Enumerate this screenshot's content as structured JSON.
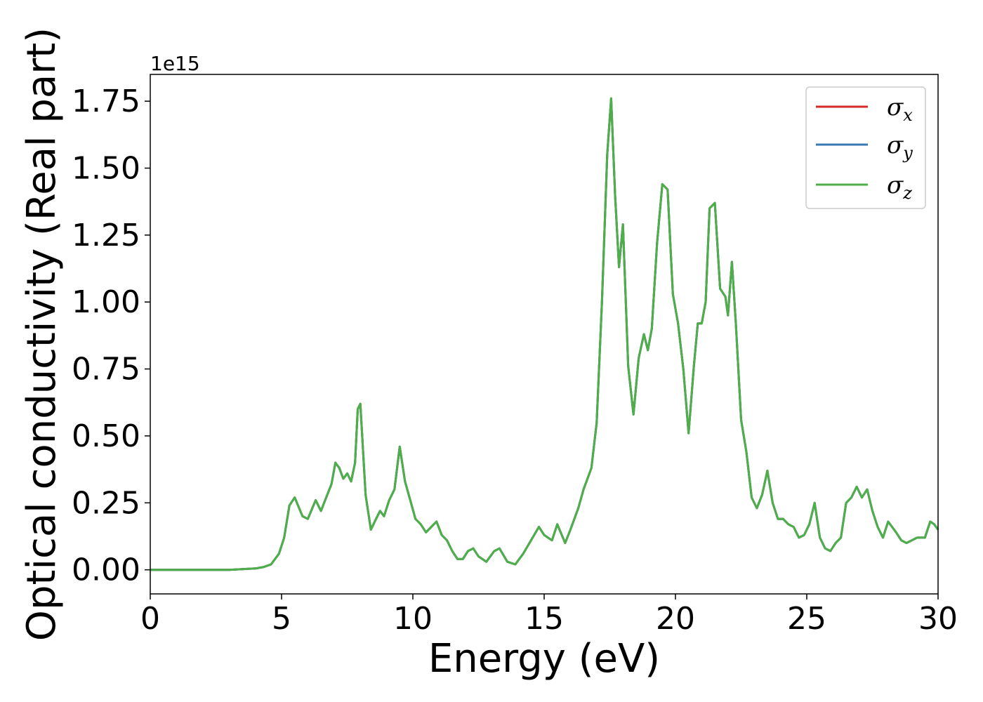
{
  "chart_data": {
    "type": "line",
    "xlabel": "Energy (eV)",
    "ylabel": "Optical conductivity (Real part)",
    "y_offset_label": "1e15",
    "xlim": [
      0,
      30
    ],
    "ylim": [
      -0.09,
      1.85
    ],
    "x_ticks": [
      0,
      5,
      10,
      15,
      20,
      25,
      30
    ],
    "x_tick_labels": [
      "0",
      "5",
      "10",
      "15",
      "20",
      "25",
      "30"
    ],
    "y_ticks": [
      0.0,
      0.25,
      0.5,
      0.75,
      1.0,
      1.25,
      1.5,
      1.75
    ],
    "y_tick_labels": [
      "0.00",
      "0.25",
      "0.50",
      "0.75",
      "1.00",
      "1.25",
      "1.50",
      "1.75"
    ],
    "grid": false,
    "legend_position": "top-right",
    "colors": {
      "sigma_x": "#d62728",
      "sigma_y": "#3a78b5",
      "sigma_z": "#4daf4a"
    },
    "legend": [
      {
        "symbol": "σ",
        "subscript": "x",
        "color": "#d62728"
      },
      {
        "symbol": "σ",
        "subscript": "y",
        "color": "#3a78b5"
      },
      {
        "symbol": "σ",
        "subscript": "z",
        "color": "#4daf4a"
      }
    ],
    "x": [
      0,
      1,
      2,
      3,
      4,
      4.3,
      4.6,
      4.9,
      5.1,
      5.3,
      5.5,
      5.8,
      6.0,
      6.3,
      6.5,
      6.7,
      6.9,
      7.05,
      7.2,
      7.35,
      7.5,
      7.65,
      7.8,
      7.9,
      8.0,
      8.2,
      8.4,
      8.6,
      8.75,
      8.9,
      9.1,
      9.3,
      9.5,
      9.7,
      9.9,
      10.1,
      10.3,
      10.5,
      10.7,
      10.9,
      11.1,
      11.3,
      11.5,
      11.7,
      11.9,
      12.1,
      12.3,
      12.5,
      12.8,
      13.1,
      13.3,
      13.6,
      13.9,
      14.2,
      14.5,
      14.8,
      15.0,
      15.3,
      15.5,
      15.8,
      16.0,
      16.3,
      16.5,
      16.8,
      17.0,
      17.2,
      17.4,
      17.55,
      17.7,
      17.85,
      18.0,
      18.2,
      18.4,
      18.6,
      18.8,
      18.95,
      19.1,
      19.3,
      19.5,
      19.7,
      19.9,
      20.1,
      20.3,
      20.5,
      20.7,
      20.85,
      21.0,
      21.15,
      21.3,
      21.5,
      21.7,
      21.9,
      22.0,
      22.15,
      22.3,
      22.5,
      22.7,
      22.9,
      23.1,
      23.3,
      23.5,
      23.7,
      23.9,
      24.1,
      24.3,
      24.5,
      24.7,
      24.9,
      25.1,
      25.3,
      25.5,
      25.7,
      25.9,
      26.1,
      26.3,
      26.5,
      26.7,
      26.9,
      27.1,
      27.3,
      27.5,
      27.7,
      27.9,
      28.1,
      28.4,
      28.6,
      28.8,
      29.0,
      29.2,
      29.5,
      29.7,
      29.85,
      30.0
    ],
    "series": [
      {
        "name": "σ_x",
        "color": "#d62728",
        "values": [
          0,
          0,
          0,
          0,
          0.005,
          0.01,
          0.02,
          0.06,
          0.12,
          0.24,
          0.27,
          0.2,
          0.19,
          0.26,
          0.22,
          0.27,
          0.32,
          0.4,
          0.38,
          0.34,
          0.36,
          0.33,
          0.4,
          0.6,
          0.62,
          0.28,
          0.15,
          0.19,
          0.22,
          0.2,
          0.26,
          0.3,
          0.46,
          0.33,
          0.26,
          0.19,
          0.17,
          0.14,
          0.16,
          0.18,
          0.13,
          0.11,
          0.07,
          0.04,
          0.04,
          0.07,
          0.08,
          0.05,
          0.03,
          0.07,
          0.08,
          0.03,
          0.02,
          0.06,
          0.11,
          0.16,
          0.13,
          0.11,
          0.17,
          0.1,
          0.15,
          0.23,
          0.3,
          0.38,
          0.55,
          1.0,
          1.55,
          1.76,
          1.4,
          1.13,
          1.29,
          0.76,
          0.58,
          0.79,
          0.88,
          0.82,
          0.9,
          1.22,
          1.44,
          1.42,
          1.03,
          0.92,
          0.75,
          0.51,
          0.76,
          0.92,
          0.92,
          1.0,
          1.35,
          1.37,
          1.05,
          1.02,
          0.95,
          1.15,
          0.92,
          0.56,
          0.44,
          0.27,
          0.23,
          0.28,
          0.37,
          0.25,
          0.19,
          0.19,
          0.17,
          0.16,
          0.12,
          0.13,
          0.17,
          0.25,
          0.12,
          0.08,
          0.07,
          0.1,
          0.12,
          0.25,
          0.27,
          0.31,
          0.27,
          0.3,
          0.22,
          0.16,
          0.12,
          0.18,
          0.14,
          0.11,
          0.1,
          0.11,
          0.12,
          0.12,
          0.18,
          0.17,
          0.15
        ]
      },
      {
        "name": "σ_y",
        "color": "#3a78b5",
        "values": [
          0,
          0,
          0,
          0,
          0.005,
          0.01,
          0.02,
          0.06,
          0.12,
          0.24,
          0.27,
          0.2,
          0.19,
          0.26,
          0.22,
          0.27,
          0.32,
          0.4,
          0.38,
          0.34,
          0.36,
          0.33,
          0.4,
          0.6,
          0.62,
          0.28,
          0.15,
          0.19,
          0.22,
          0.2,
          0.26,
          0.3,
          0.46,
          0.33,
          0.26,
          0.19,
          0.17,
          0.14,
          0.16,
          0.18,
          0.13,
          0.11,
          0.07,
          0.04,
          0.04,
          0.07,
          0.08,
          0.05,
          0.03,
          0.07,
          0.08,
          0.03,
          0.02,
          0.06,
          0.11,
          0.16,
          0.13,
          0.11,
          0.17,
          0.1,
          0.15,
          0.23,
          0.3,
          0.38,
          0.55,
          1.0,
          1.55,
          1.76,
          1.4,
          1.13,
          1.29,
          0.76,
          0.58,
          0.79,
          0.88,
          0.82,
          0.9,
          1.22,
          1.44,
          1.42,
          1.03,
          0.92,
          0.75,
          0.51,
          0.76,
          0.92,
          0.92,
          1.0,
          1.35,
          1.37,
          1.05,
          1.02,
          0.95,
          1.15,
          0.92,
          0.56,
          0.44,
          0.27,
          0.23,
          0.28,
          0.37,
          0.25,
          0.19,
          0.19,
          0.17,
          0.16,
          0.12,
          0.13,
          0.17,
          0.25,
          0.12,
          0.08,
          0.07,
          0.1,
          0.12,
          0.25,
          0.27,
          0.31,
          0.27,
          0.3,
          0.22,
          0.16,
          0.12,
          0.18,
          0.14,
          0.11,
          0.1,
          0.11,
          0.12,
          0.12,
          0.18,
          0.17,
          0.15
        ]
      },
      {
        "name": "σ_z",
        "color": "#4daf4a",
        "values": [
          0,
          0,
          0,
          0,
          0.005,
          0.01,
          0.02,
          0.06,
          0.12,
          0.24,
          0.27,
          0.2,
          0.19,
          0.26,
          0.22,
          0.27,
          0.32,
          0.4,
          0.38,
          0.34,
          0.36,
          0.33,
          0.4,
          0.6,
          0.62,
          0.28,
          0.15,
          0.19,
          0.22,
          0.2,
          0.26,
          0.3,
          0.46,
          0.33,
          0.26,
          0.19,
          0.17,
          0.14,
          0.16,
          0.18,
          0.13,
          0.11,
          0.07,
          0.04,
          0.04,
          0.07,
          0.08,
          0.05,
          0.03,
          0.07,
          0.08,
          0.03,
          0.02,
          0.06,
          0.11,
          0.16,
          0.13,
          0.11,
          0.17,
          0.1,
          0.15,
          0.23,
          0.3,
          0.38,
          0.55,
          1.0,
          1.55,
          1.76,
          1.4,
          1.13,
          1.29,
          0.76,
          0.58,
          0.79,
          0.88,
          0.82,
          0.9,
          1.22,
          1.44,
          1.42,
          1.03,
          0.92,
          0.75,
          0.51,
          0.76,
          0.92,
          0.92,
          1.0,
          1.35,
          1.37,
          1.05,
          1.02,
          0.95,
          1.15,
          0.92,
          0.56,
          0.44,
          0.27,
          0.23,
          0.28,
          0.37,
          0.25,
          0.19,
          0.19,
          0.17,
          0.16,
          0.12,
          0.13,
          0.17,
          0.25,
          0.12,
          0.08,
          0.07,
          0.1,
          0.12,
          0.25,
          0.27,
          0.31,
          0.27,
          0.3,
          0.22,
          0.16,
          0.12,
          0.18,
          0.14,
          0.11,
          0.1,
          0.11,
          0.12,
          0.12,
          0.18,
          0.17,
          0.15
        ]
      }
    ]
  }
}
